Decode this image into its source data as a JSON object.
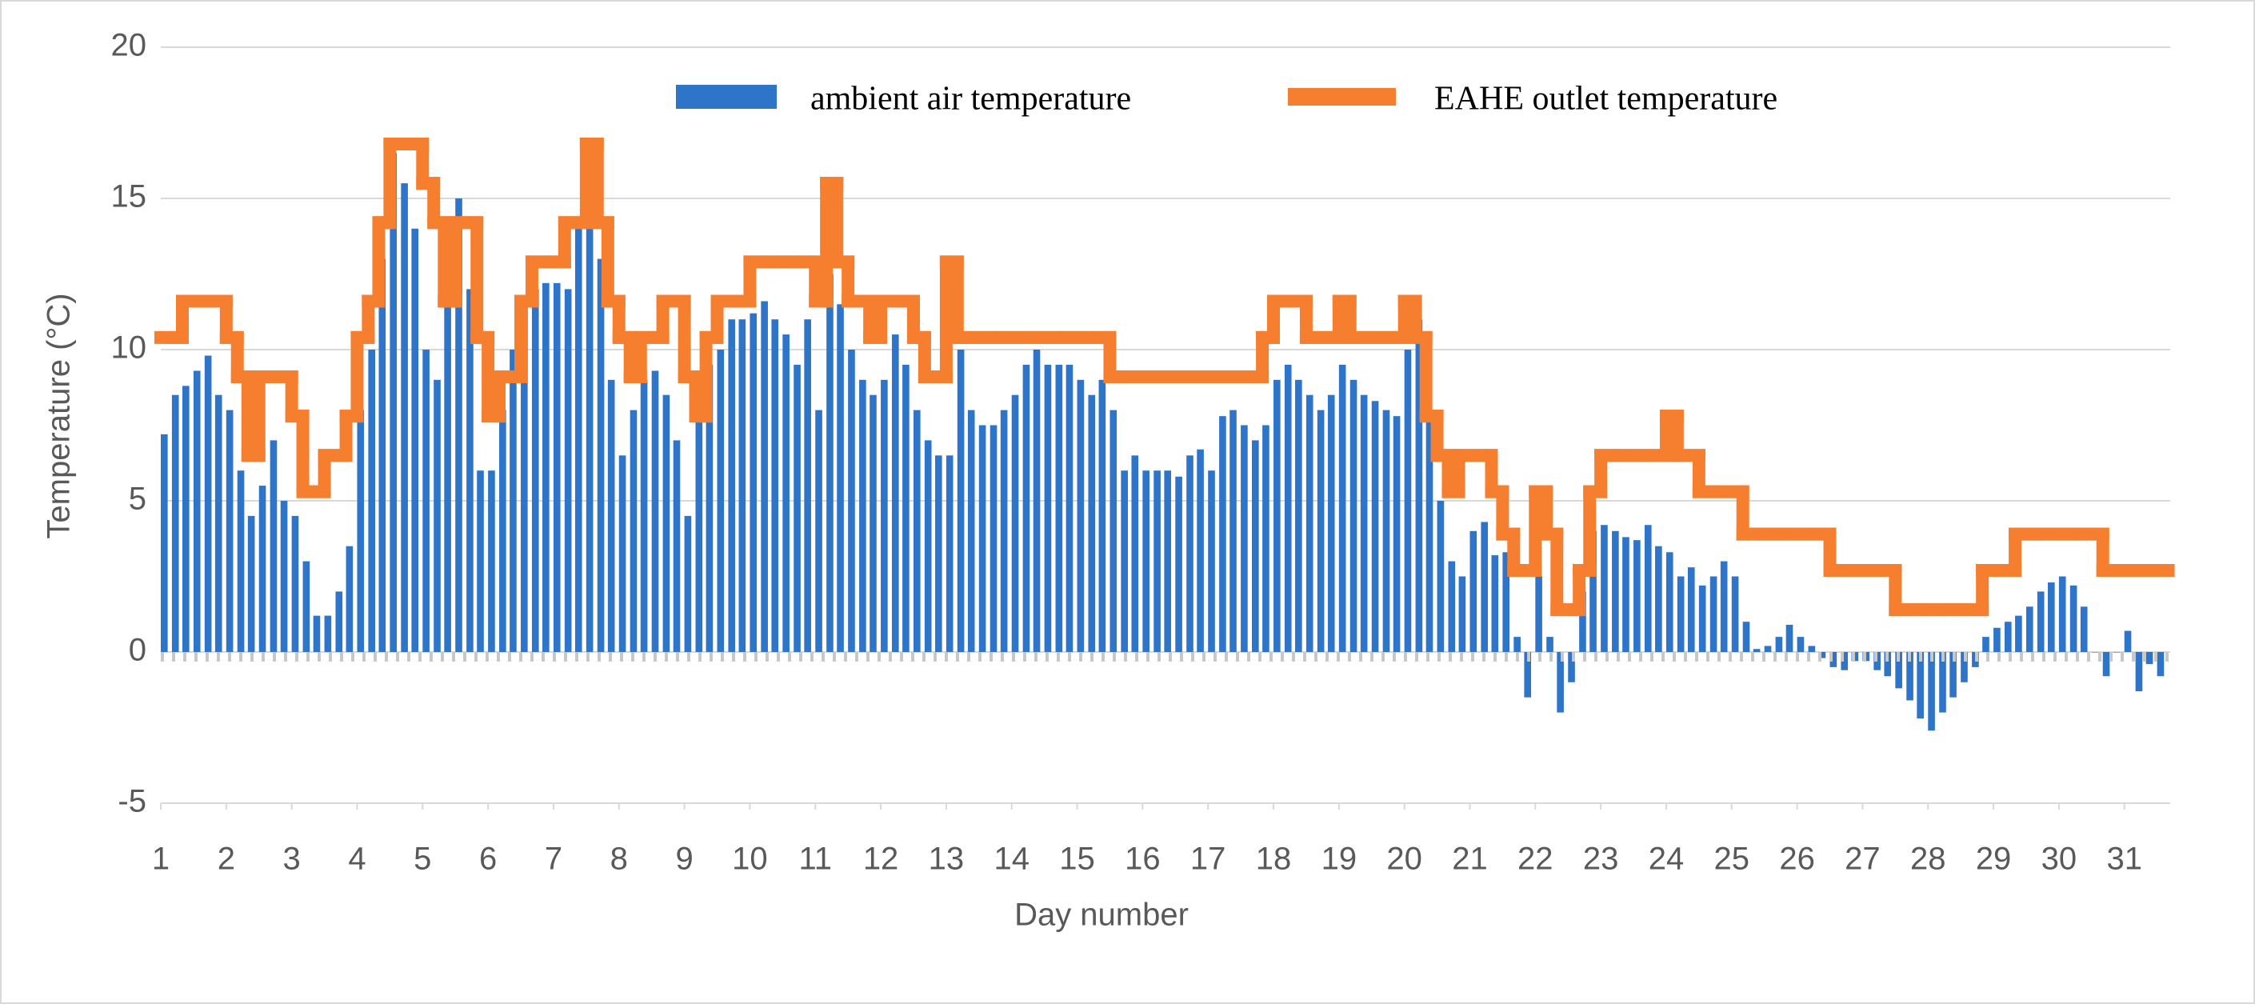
{
  "chart_data": {
    "type": "bar",
    "ylabel": "Temperature (°C)",
    "xlabel": "Day number",
    "xlim": [
      1,
      31.7
    ],
    "xticks": [
      1,
      2,
      3,
      4,
      5,
      6,
      7,
      8,
      9,
      10,
      11,
      12,
      13,
      14,
      15,
      16,
      17,
      18,
      19,
      20,
      21,
      22,
      23,
      24,
      25,
      26,
      27,
      28,
      29,
      30,
      31
    ],
    "ylim": [
      -5,
      20
    ],
    "yticks": [
      -5,
      0,
      5,
      10,
      15,
      20
    ],
    "grid": true,
    "legend": "top",
    "x": [
      1,
      1.17,
      1.33,
      1.5,
      1.67,
      1.83,
      2,
      2.17,
      2.33,
      2.5,
      2.67,
      2.83,
      3,
      3.17,
      3.33,
      3.5,
      3.67,
      3.83,
      4,
      4.17,
      4.33,
      4.5,
      4.67,
      4.83,
      5,
      5.17,
      5.33,
      5.5,
      5.67,
      5.83,
      6,
      6.17,
      6.33,
      6.5,
      6.67,
      6.83,
      7,
      7.17,
      7.33,
      7.5,
      7.67,
      7.83,
      8,
      8.17,
      8.33,
      8.5,
      8.67,
      8.83,
      9,
      9.17,
      9.33,
      9.5,
      9.67,
      9.83,
      10,
      10.17,
      10.33,
      10.5,
      10.67,
      10.83,
      11,
      11.17,
      11.33,
      11.5,
      11.67,
      11.83,
      12,
      12.17,
      12.33,
      12.5,
      12.67,
      12.83,
      13,
      13.17,
      13.33,
      13.5,
      13.67,
      13.83,
      14,
      14.17,
      14.33,
      14.5,
      14.67,
      14.83,
      15,
      15.17,
      15.33,
      15.5,
      15.67,
      15.83,
      16,
      16.17,
      16.33,
      16.5,
      16.67,
      16.83,
      17,
      17.17,
      17.33,
      17.5,
      17.67,
      17.83,
      18,
      18.17,
      18.33,
      18.5,
      18.67,
      18.83,
      19,
      19.17,
      19.33,
      19.5,
      19.67,
      19.83,
      20,
      20.17,
      20.33,
      20.5,
      20.67,
      20.83,
      21,
      21.17,
      21.33,
      21.5,
      21.67,
      21.83,
      22,
      22.17,
      22.33,
      22.5,
      22.67,
      22.83,
      23,
      23.17,
      23.33,
      23.5,
      23.67,
      23.83,
      24,
      24.17,
      24.33,
      24.5,
      24.67,
      24.83,
      25,
      25.17,
      25.33,
      25.5,
      25.67,
      25.83,
      26,
      26.17,
      26.33,
      26.5,
      26.67,
      26.83,
      27,
      27.17,
      27.33,
      27.5,
      27.67,
      27.83,
      28,
      28.17,
      28.33,
      28.5,
      28.67,
      28.83,
      29,
      29.17,
      29.33,
      29.5,
      29.67,
      29.83,
      30,
      30.17,
      30.33,
      30.5,
      30.67,
      30.83,
      31,
      31.17,
      31.33,
      31.5
    ],
    "series": [
      {
        "name": "ambient air temperature",
        "type": "bar",
        "color": "#2e75c9",
        "values": [
          7.2,
          8.5,
          8.8,
          9.3,
          9.8,
          8.5,
          8,
          6,
          4.5,
          5.5,
          7,
          5,
          4.5,
          3,
          1.2,
          1.2,
          2,
          3.5,
          8,
          10,
          13,
          16.5,
          15.5,
          14,
          10,
          9,
          13,
          15,
          12,
          6,
          6,
          8,
          10,
          11.5,
          12,
          12.2,
          12.2,
          12,
          14,
          16.5,
          13,
          9,
          6.5,
          8,
          9,
          9.3,
          8.5,
          7,
          4.5,
          9,
          9.5,
          10,
          11,
          11,
          11.2,
          11.6,
          11,
          10.5,
          9.5,
          11,
          8,
          12.5,
          11.5,
          10,
          9,
          8.5,
          9,
          10.5,
          9.5,
          8,
          7,
          6.5,
          6.5,
          10,
          8,
          7.5,
          7.5,
          8,
          8.5,
          9.5,
          10,
          9.5,
          9.5,
          9.5,
          9,
          8.5,
          9,
          8,
          6,
          6.5,
          6,
          6,
          6,
          5.8,
          6.5,
          6.7,
          6,
          7.8,
          8,
          7.5,
          7,
          7.5,
          9,
          9.5,
          9,
          8.5,
          8,
          8.5,
          9.5,
          9,
          8.5,
          8.3,
          8,
          7.8,
          10,
          11,
          8,
          5,
          3,
          2.5,
          4,
          4.3,
          3.2,
          3.3,
          0.5,
          -1.5,
          2.5,
          0.5,
          -2,
          -1,
          2,
          4,
          4.2,
          4,
          3.8,
          3.7,
          4.2,
          3.5,
          3.3,
          2.5,
          2.8,
          2.2,
          2.5,
          3,
          2.5,
          1,
          0.1,
          0.2,
          0.5,
          0.9,
          0.5,
          0.2,
          -0.2,
          -0.5,
          -0.6,
          -0.3,
          -0.3,
          -0.6,
          -0.8,
          -1.2,
          -1.6,
          -2.2,
          -2.6,
          -2,
          -1.5,
          -1,
          -0.5,
          0.5,
          0.8,
          1,
          1.2,
          1.5,
          2,
          2.3,
          2.5,
          2.2,
          1.5,
          0,
          -0.8,
          0,
          0.7,
          -1.3,
          -0.4,
          -0.8
        ]
      },
      {
        "name": "EAHE outlet temperature",
        "type": "step",
        "color": "#f57f2f",
        "values": [
          10.4,
          10.4,
          11.6,
          11.6,
          11.6,
          11.6,
          10.4,
          9.1,
          6.5,
          9.1,
          9.1,
          9.1,
          7.8,
          5.3,
          5.3,
          6.5,
          6.5,
          7.8,
          10.4,
          11.6,
          14.2,
          16.8,
          16.8,
          16.8,
          15.5,
          14.2,
          11.6,
          14.2,
          14.2,
          10.4,
          7.8,
          9.1,
          9.1,
          11.6,
          12.9,
          12.9,
          12.9,
          14.2,
          14.2,
          16.8,
          14.2,
          11.6,
          10.4,
          9.1,
          10.4,
          10.4,
          11.6,
          11.6,
          9.1,
          7.8,
          10.4,
          11.6,
          11.6,
          11.6,
          12.9,
          12.9,
          12.9,
          12.9,
          12.9,
          12.9,
          11.6,
          15.5,
          12.9,
          11.6,
          11.6,
          10.4,
          11.6,
          11.6,
          11.6,
          10.4,
          9.1,
          9.1,
          12.9,
          10.4,
          10.4,
          10.4,
          10.4,
          10.4,
          10.4,
          10.4,
          10.4,
          10.4,
          10.4,
          10.4,
          10.4,
          10.4,
          10.4,
          9.1,
          9.1,
          9.1,
          9.1,
          9.1,
          9.1,
          9.1,
          9.1,
          9.1,
          9.1,
          9.1,
          9.1,
          9.1,
          9.1,
          10.4,
          11.6,
          11.6,
          11.6,
          10.4,
          10.4,
          10.4,
          11.6,
          10.4,
          10.4,
          10.4,
          10.4,
          10.4,
          11.6,
          10.4,
          7.8,
          6.5,
          5.3,
          6.5,
          6.5,
          6.5,
          5.3,
          3.9,
          2.7,
          2.7,
          5.3,
          3.9,
          1.4,
          1.4,
          2.7,
          5.3,
          6.5,
          6.5,
          6.5,
          6.5,
          6.5,
          6.5,
          7.8,
          6.5,
          6.5,
          5.3,
          5.3,
          5.3,
          5.3,
          3.9,
          3.9,
          3.9,
          3.9,
          3.9,
          3.9,
          3.9,
          3.9,
          2.7,
          2.7,
          2.7,
          2.7,
          2.7,
          2.7,
          1.4,
          1.4,
          1.4,
          1.4,
          1.4,
          1.4,
          1.4,
          1.4,
          2.7,
          2.7,
          2.7,
          3.9,
          3.9,
          3.9,
          3.9,
          3.9,
          3.9,
          3.9,
          3.9,
          2.7,
          2.7,
          2.7,
          2.7,
          2.7,
          2.7
        ]
      }
    ]
  }
}
